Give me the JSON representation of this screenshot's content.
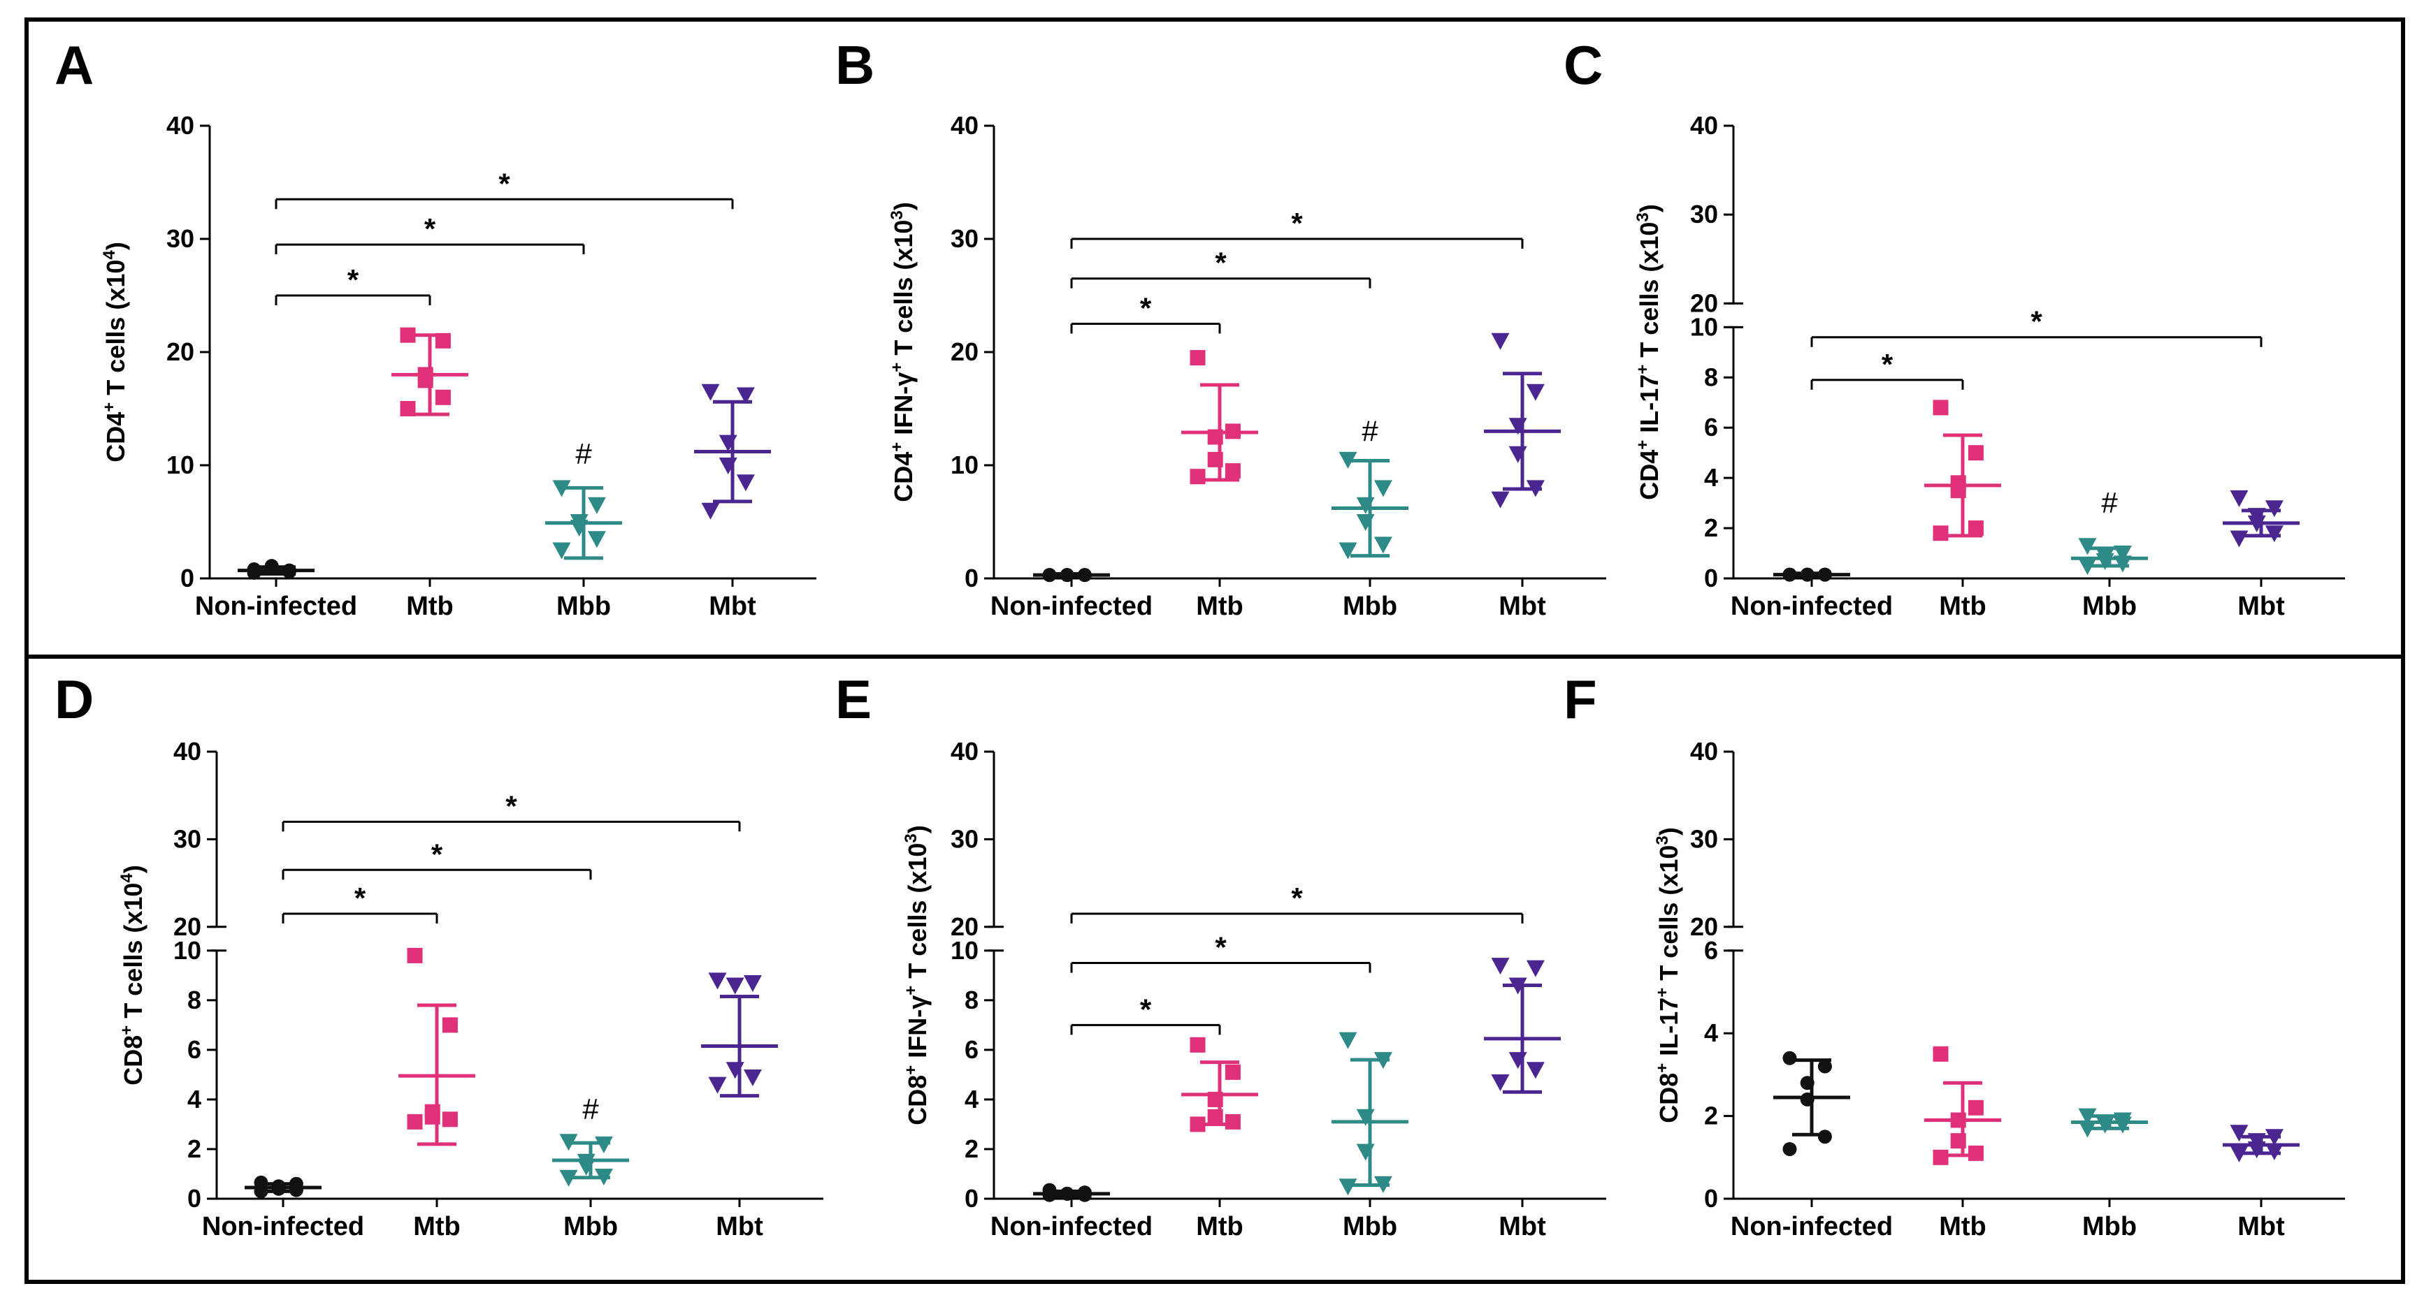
{
  "colors": {
    "Non-infected": "#111111",
    "Mtb": "#e0307a",
    "Mbb": "#2e8a86",
    "Mbt": "#4b2590"
  },
  "chart_data": [
    {
      "type": "scatter",
      "panel": "A",
      "ylabel": "CD4",
      "ylabel_sup": "+",
      "ylabel_rest": " T cells (x10",
      "ylabel_exp": "4",
      "ylabel_close": ")",
      "categories": [
        "Non-infected",
        "Mtb",
        "Mbb",
        "Mbt"
      ],
      "ylim": [
        0,
        40
      ],
      "ticks": [
        "0",
        "10",
        "20",
        "30",
        "40"
      ],
      "tick_values": [
        0,
        10,
        20,
        30,
        40
      ],
      "series": [
        {
          "name": "Non-infected",
          "marker": "circle",
          "points": [
            0.5,
            0.7,
            0.9,
            1.1,
            0.6,
            0.8
          ],
          "mean": 0.7,
          "sd_low": 0.4,
          "sd_high": 1.0
        },
        {
          "name": "Mtb",
          "marker": "square",
          "points": [
            21.5,
            21.0,
            18.0,
            17.5,
            16.0,
            15.0
          ],
          "mean": 18.0,
          "sd_low": 14.5,
          "sd_high": 21.5
        },
        {
          "name": "Mbb",
          "marker": "triangle-down",
          "points": [
            8.0,
            6.5,
            5.0,
            4.5,
            3.5,
            2.5
          ],
          "mean": 4.9,
          "sd_low": 1.8,
          "sd_high": 8.0
        },
        {
          "name": "Mbt",
          "marker": "triangle-down",
          "points": [
            16.5,
            16.2,
            12.0,
            10.0,
            8.5,
            6.0
          ],
          "mean": 11.2,
          "sd_low": 6.8,
          "sd_high": 15.6
        }
      ],
      "significance": [
        {
          "from": 0,
          "to": 1,
          "y": 25.0,
          "label": "*"
        },
        {
          "from": 0,
          "to": 2,
          "y": 29.5,
          "label": "*"
        },
        {
          "from": 0,
          "to": 3,
          "y": 33.5,
          "label": "*"
        }
      ],
      "hash": [
        {
          "category": 2,
          "y": 11.0,
          "label": "#"
        }
      ]
    },
    {
      "type": "scatter",
      "panel": "B",
      "ylabel": "CD4",
      "ylabel_sup": "+",
      "ylabel_rest": " IFN-γ",
      "ylabel_sup2": "+",
      "ylabel_rest2": " T cells (x10",
      "ylabel_exp": "3",
      "ylabel_close": ")",
      "categories": [
        "Non-infected",
        "Mtb",
        "Mbb",
        "Mbt"
      ],
      "ylim": [
        0,
        40
      ],
      "ticks": [
        "0",
        "10",
        "20",
        "30",
        "40"
      ],
      "tick_values": [
        0,
        10,
        20,
        30,
        40
      ],
      "series": [
        {
          "name": "Non-infected",
          "marker": "circle",
          "points": [
            0.3,
            0.3,
            0.3,
            0.3,
            0.3,
            0.3
          ],
          "mean": 0.3,
          "sd_low": 0.2,
          "sd_high": 0.4
        },
        {
          "name": "Mtb",
          "marker": "square",
          "points": [
            19.5,
            13.0,
            12.5,
            10.5,
            9.5,
            9.0
          ],
          "mean": 12.9,
          "sd_low": 8.7,
          "sd_high": 17.1
        },
        {
          "name": "Mbb",
          "marker": "triangle-down",
          "points": [
            10.5,
            8.0,
            6.5,
            5.0,
            3.0,
            2.5
          ],
          "mean": 6.2,
          "sd_low": 2.0,
          "sd_high": 10.4
        },
        {
          "name": "Mbt",
          "marker": "triangle-down",
          "points": [
            21.0,
            16.5,
            13.5,
            11.0,
            8.0,
            7.0
          ],
          "mean": 13.0,
          "sd_low": 7.9,
          "sd_high": 18.1
        }
      ],
      "significance": [
        {
          "from": 0,
          "to": 1,
          "y": 22.5,
          "label": "*"
        },
        {
          "from": 0,
          "to": 2,
          "y": 26.5,
          "label": "*"
        },
        {
          "from": 0,
          "to": 3,
          "y": 30.0,
          "label": "*"
        }
      ],
      "hash": [
        {
          "category": 2,
          "y": 13.0,
          "label": "#"
        }
      ]
    },
    {
      "type": "scatter",
      "panel": "C",
      "ylabel": "CD4",
      "ylabel_sup": "+",
      "ylabel_rest": " IL-17",
      "ylabel_sup2": "+",
      "ylabel_rest2": " T cells  (x10",
      "ylabel_exp": "3",
      "ylabel_close": ")",
      "categories": [
        "Non-infected",
        "Mtb",
        "Mbb",
        "Mbt"
      ],
      "broken_axis": {
        "low": [
          0,
          10
        ],
        "high": [
          20,
          40
        ],
        "low_ticks": [
          0,
          2,
          4,
          6,
          8,
          10
        ],
        "high_ticks": [
          20,
          30,
          40
        ]
      },
      "ticks": [
        "0",
        "2",
        "4",
        "6",
        "8",
        "10",
        "20",
        "30",
        "40"
      ],
      "series": [
        {
          "name": "Non-infected",
          "marker": "circle",
          "points": [
            0.15,
            0.15,
            0.15,
            0.15,
            0.15,
            0.15
          ],
          "mean": 0.15,
          "sd_low": 0.1,
          "sd_high": 0.2
        },
        {
          "name": "Mtb",
          "marker": "square",
          "points": [
            6.8,
            5.0,
            3.8,
            3.5,
            2.0,
            1.8
          ],
          "mean": 3.7,
          "sd_low": 1.7,
          "sd_high": 5.7
        },
        {
          "name": "Mbb",
          "marker": "triangle-down",
          "points": [
            1.3,
            1.0,
            0.9,
            0.7,
            0.6,
            0.5
          ],
          "mean": 0.8,
          "sd_low": 0.5,
          "sd_high": 1.2
        },
        {
          "name": "Mbt",
          "marker": "triangle-down",
          "points": [
            3.2,
            2.8,
            2.5,
            2.2,
            1.8,
            1.6
          ],
          "mean": 2.2,
          "sd_low": 1.7,
          "sd_high": 2.7
        }
      ],
      "significance": [
        {
          "from": 0,
          "to": 1,
          "y": 7.9,
          "label": "*"
        },
        {
          "from": 0,
          "to": 3,
          "y": 9.6,
          "label": "*"
        }
      ],
      "hash": [
        {
          "category": 2,
          "y": 3.0,
          "label": "#"
        }
      ]
    },
    {
      "type": "scatter",
      "panel": "D",
      "ylabel": "CD8",
      "ylabel_sup": "+",
      "ylabel_rest": " T cells (x10",
      "ylabel_exp": "4",
      "ylabel_close": ")",
      "categories": [
        "Non-infected",
        "Mtb",
        "Mbb",
        "Mbt"
      ],
      "broken_axis": {
        "low": [
          0,
          10
        ],
        "high": [
          20,
          40
        ],
        "low_ticks": [
          0,
          2,
          4,
          6,
          8,
          10
        ],
        "high_ticks": [
          20,
          30,
          40
        ]
      },
      "ticks": [
        "0",
        "2",
        "4",
        "6",
        "8",
        "10",
        "20",
        "30",
        "40"
      ],
      "series": [
        {
          "name": "Non-infected",
          "marker": "circle",
          "points": [
            0.65,
            0.6,
            0.5,
            0.4,
            0.35,
            0.3
          ],
          "mean": 0.45,
          "sd_low": 0.3,
          "sd_high": 0.6
        },
        {
          "name": "Mtb",
          "marker": "square",
          "points": [
            9.8,
            7.0,
            3.5,
            3.3,
            3.2,
            3.1
          ],
          "mean": 4.95,
          "sd_low": 2.2,
          "sd_high": 7.8
        },
        {
          "name": "Mbb",
          "marker": "triangle-down",
          "points": [
            2.3,
            2.2,
            1.5,
            1.3,
            0.9,
            0.85
          ],
          "mean": 1.55,
          "sd_low": 0.85,
          "sd_high": 2.25
        },
        {
          "name": "Mbt",
          "marker": "triangle-down",
          "points": [
            8.8,
            8.7,
            8.6,
            5.2,
            4.9,
            4.6
          ],
          "mean": 6.15,
          "sd_low": 4.15,
          "sd_high": 8.15
        }
      ],
      "significance": [
        {
          "from": 0,
          "to": 1,
          "y": 21.5,
          "label": "*"
        },
        {
          "from": 0,
          "to": 2,
          "y": 26.5,
          "label": "*"
        },
        {
          "from": 0,
          "to": 3,
          "y": 32.0,
          "label": "*"
        }
      ],
      "hash": [
        {
          "category": 2,
          "y": 3.6,
          "label": "#"
        }
      ]
    },
    {
      "type": "scatter",
      "panel": "E",
      "ylabel": "CD8",
      "ylabel_sup": "+",
      "ylabel_rest": " IFN-γ",
      "ylabel_sup2": "+",
      "ylabel_rest2": " T cells  (x10",
      "ylabel_exp": "3",
      "ylabel_close": ")",
      "categories": [
        "Non-infected",
        "Mtb",
        "Mbb",
        "Mbt"
      ],
      "broken_axis": {
        "low": [
          0,
          10
        ],
        "high": [
          20,
          40
        ],
        "low_ticks": [
          0,
          2,
          4,
          6,
          8,
          10
        ],
        "high_ticks": [
          20,
          30,
          40
        ]
      },
      "ticks": [
        "0",
        "2",
        "4",
        "6",
        "8",
        "10",
        "20",
        "30",
        "40"
      ],
      "series": [
        {
          "name": "Non-infected",
          "marker": "circle",
          "points": [
            0.35,
            0.25,
            0.2,
            0.2,
            0.15,
            0.15
          ],
          "mean": 0.2,
          "sd_low": 0.1,
          "sd_high": 0.3
        },
        {
          "name": "Mtb",
          "marker": "square",
          "points": [
            6.2,
            5.1,
            4.0,
            3.3,
            3.1,
            3.0
          ],
          "mean": 4.2,
          "sd_low": 3.0,
          "sd_high": 5.5
        },
        {
          "name": "Mbb",
          "marker": "triangle-down",
          "points": [
            6.4,
            5.6,
            3.3,
            1.9,
            0.6,
            0.5
          ],
          "mean": 3.1,
          "sd_low": 0.55,
          "sd_high": 5.6
        },
        {
          "name": "Mbt",
          "marker": "triangle-down",
          "points": [
            9.4,
            9.3,
            8.6,
            5.6,
            5.2,
            4.7
          ],
          "mean": 6.45,
          "sd_low": 4.3,
          "sd_high": 8.6
        }
      ],
      "significance": [
        {
          "from": 0,
          "to": 1,
          "y": 7.0,
          "label": "*"
        },
        {
          "from": 0,
          "to": 2,
          "y": 9.5,
          "label": "*"
        },
        {
          "from": 0,
          "to": 3,
          "y": 21.5,
          "label": "*"
        }
      ],
      "hash": []
    },
    {
      "type": "scatter",
      "panel": "F",
      "ylabel": "CD8",
      "ylabel_sup": "+",
      "ylabel_rest": " IL-17",
      "ylabel_sup2": "+",
      "ylabel_rest2": " T cells  (x10",
      "ylabel_exp": "3",
      "ylabel_close": ")",
      "categories": [
        "Non-infected",
        "Mtb",
        "Mbb",
        "Mbt"
      ],
      "broken_axis": {
        "low": [
          0,
          6
        ],
        "high": [
          20,
          40
        ],
        "low_ticks": [
          0,
          2,
          4,
          6
        ],
        "high_ticks": [
          20,
          30,
          40
        ]
      },
      "ticks": [
        "0",
        "2",
        "4",
        "6",
        "20",
        "30",
        "40"
      ],
      "series": [
        {
          "name": "Non-infected",
          "marker": "circle",
          "points": [
            3.4,
            3.2,
            2.8,
            2.4,
            1.5,
            1.2
          ],
          "mean": 2.45,
          "sd_low": 1.55,
          "sd_high": 3.35
        },
        {
          "name": "Mtb",
          "marker": "square",
          "points": [
            3.5,
            2.2,
            1.9,
            1.4,
            1.1,
            1.0
          ],
          "mean": 1.9,
          "sd_low": 1.05,
          "sd_high": 2.8
        },
        {
          "name": "Mbb",
          "marker": "triangle-down",
          "points": [
            2.0,
            1.9,
            1.85,
            1.8,
            1.8,
            1.7
          ],
          "mean": 1.85,
          "sd_low": 1.7,
          "sd_high": 2.0
        },
        {
          "name": "Mbt",
          "marker": "triangle-down",
          "points": [
            1.6,
            1.5,
            1.4,
            1.2,
            1.15,
            1.1
          ],
          "mean": 1.3,
          "sd_low": 1.1,
          "sd_high": 1.5
        }
      ],
      "significance": [],
      "hash": []
    }
  ]
}
